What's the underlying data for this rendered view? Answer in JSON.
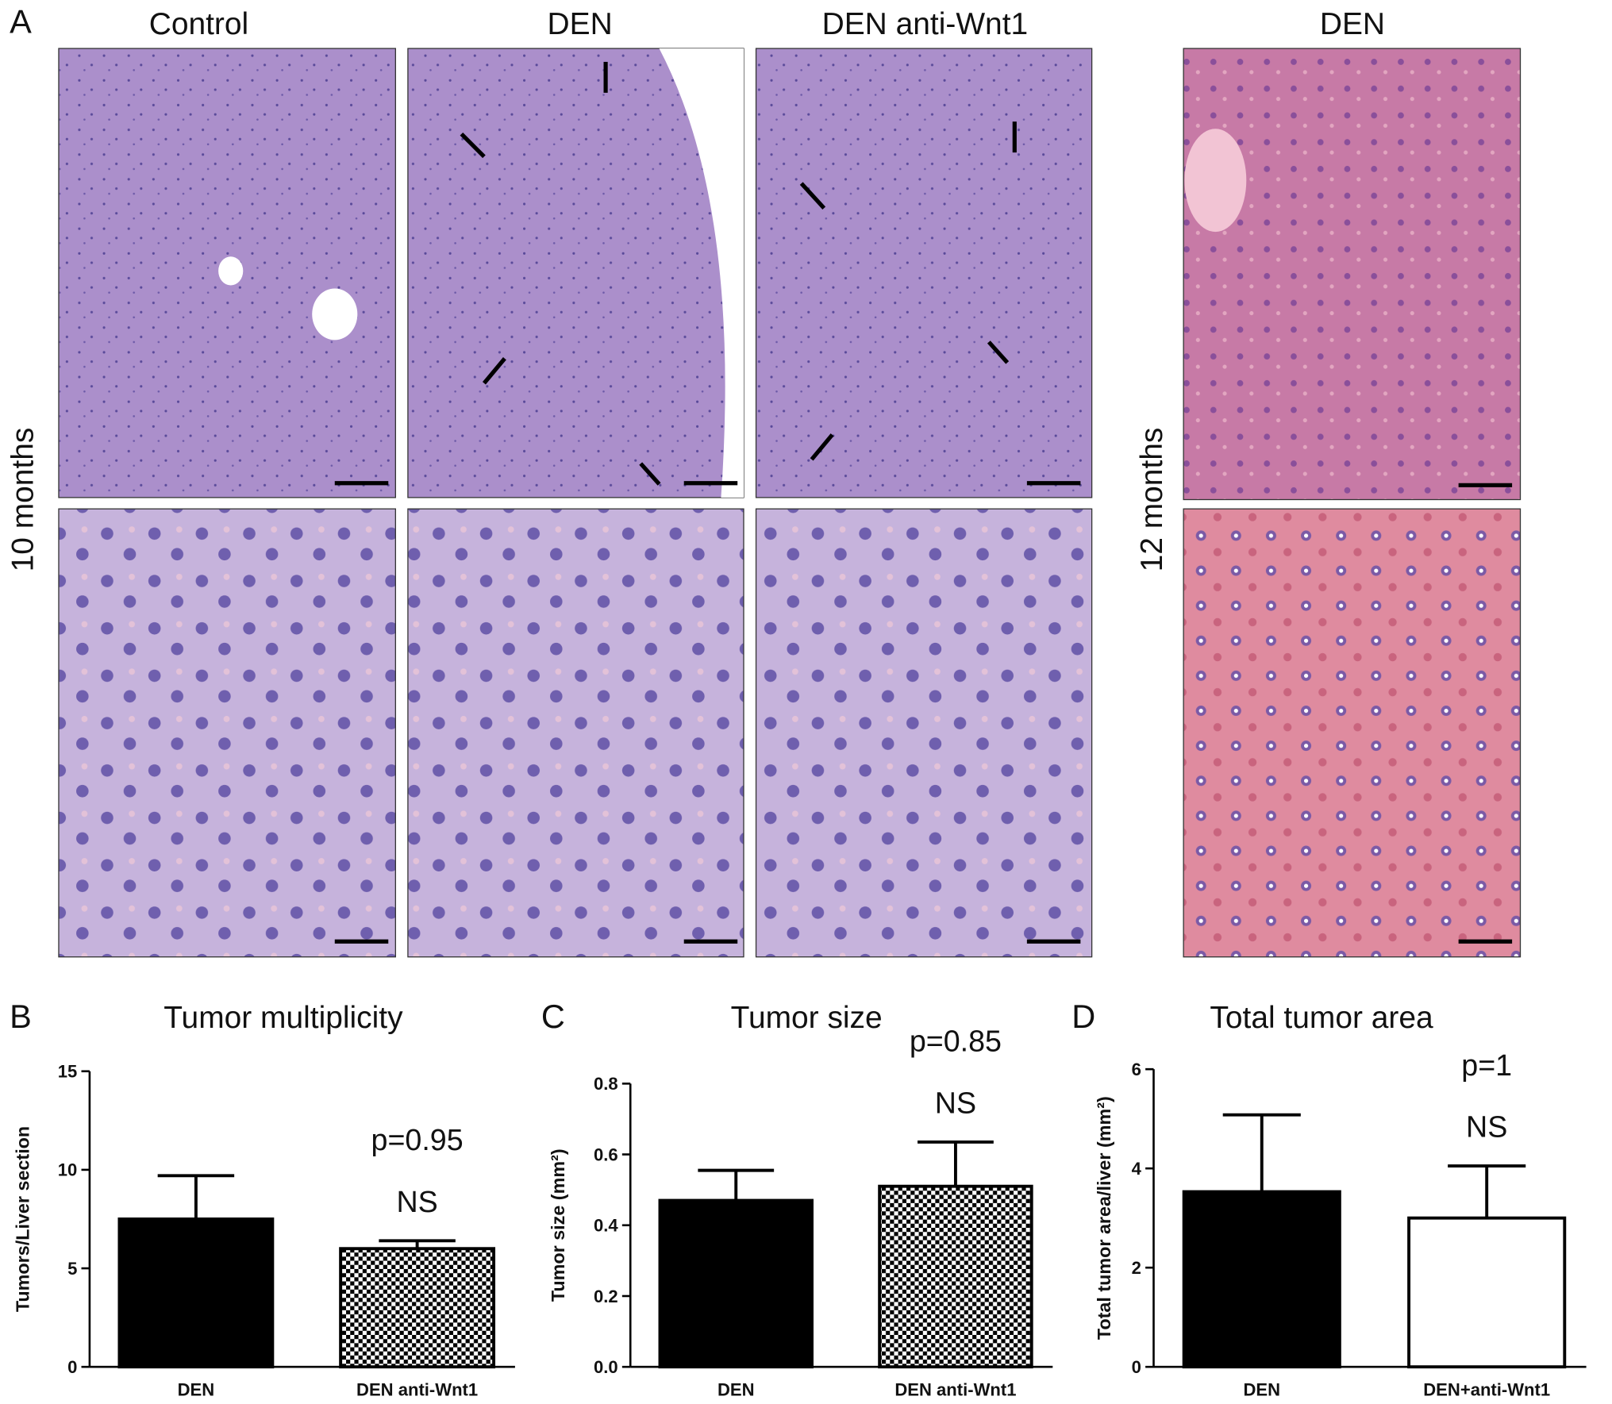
{
  "panel_labels": [
    "A",
    "B",
    "C",
    "D"
  ],
  "panel_a": {
    "column_titles": [
      "Control",
      "DEN",
      "DEN anti-Wnt1",
      "DEN"
    ],
    "row_labels": [
      "10 months",
      "12 months"
    ]
  },
  "chart_data": [
    {
      "type": "bar",
      "title": "Tumor multiplicity",
      "y_label": "Tumors/Liver section",
      "categories": [
        "DEN",
        "DEN anti-Wnt1"
      ],
      "values": [
        7.5,
        6.0
      ],
      "errors": [
        2.2,
        0.4
      ],
      "colors": [
        "#000000",
        "#000000"
      ],
      "patterns": [
        "solid",
        "checkered"
      ],
      "ylim": [
        0,
        15
      ],
      "yticks": [
        0,
        5,
        10,
        15
      ],
      "annotations": [
        "p=0.95",
        "NS"
      ]
    },
    {
      "type": "bar",
      "title": "Tumor size",
      "y_label": "Tumor size (mm²)",
      "categories": [
        "DEN",
        "DEN anti-Wnt1"
      ],
      "values": [
        0.47,
        0.51
      ],
      "errors": [
        0.085,
        0.125
      ],
      "colors": [
        "#000000",
        "#000000"
      ],
      "patterns": [
        "solid",
        "checkered"
      ],
      "ylim": [
        0,
        0.8
      ],
      "yticks": [
        {
          "value": 0,
          "label": "0.0"
        },
        0.2,
        0.4,
        0.6,
        0.8
      ],
      "annotations": [
        "p=0.85",
        "NS"
      ]
    },
    {
      "type": "bar",
      "title": "Total tumor area",
      "y_label": "Total tumor area/liver (mm²)",
      "categories": [
        "DEN",
        "DEN+anti-Wnt1"
      ],
      "values": [
        3.53,
        3.0
      ],
      "errors": [
        1.55,
        1.05
      ],
      "colors": [
        "#000000",
        "#ffffff"
      ],
      "patterns": [
        "solid",
        "solid"
      ],
      "ylim": [
        0,
        6
      ],
      "yticks": [
        0,
        2,
        4,
        6
      ],
      "annotations": [
        "p=1",
        "NS"
      ]
    }
  ]
}
